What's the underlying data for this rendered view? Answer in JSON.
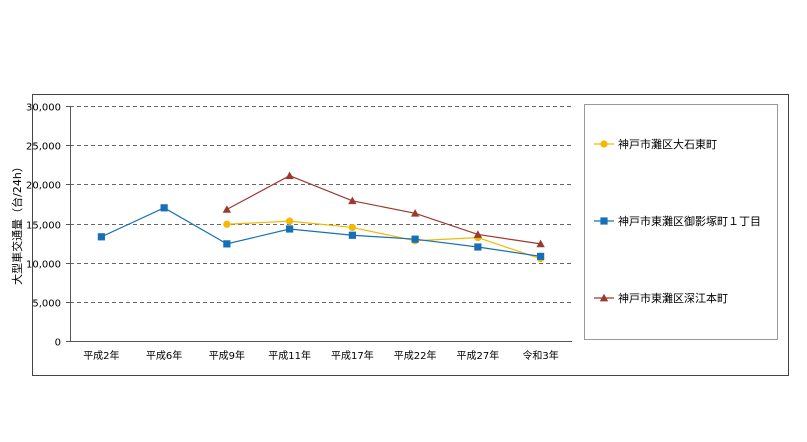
{
  "chart_data": {
    "type": "line",
    "title": "",
    "xlabel": "",
    "ylabel": "大型車交通量（台/24h）",
    "categories": [
      "平成2年",
      "平成6年",
      "平成9年",
      "平成11年",
      "平成17年",
      "平成22年",
      "平成27年",
      "令和3年"
    ],
    "ylim": [
      0,
      30000
    ],
    "yticks": [
      0,
      5000,
      10000,
      15000,
      20000,
      25000,
      30000
    ],
    "ytick_labels": [
      "0",
      "5,000",
      "10,000",
      "15,000",
      "20,000",
      "25,000",
      "30,000"
    ],
    "grid": "dashed horizontal",
    "legend_position": "right",
    "series": [
      {
        "name": "神戸市灘区大石東町",
        "color": "#f5b800",
        "marker": "circle",
        "values": [
          null,
          null,
          14900,
          15300,
          14500,
          12800,
          13200,
          10500
        ]
      },
      {
        "name": "神戸市東灘区御影塚町１丁目",
        "color": "#1670b7",
        "marker": "square",
        "values": [
          13300,
          17000,
          12400,
          14300,
          13500,
          13000,
          12000,
          10800
        ]
      },
      {
        "name": "神戸市東灘区深江本町",
        "color": "#9b3a31",
        "marker": "triangle",
        "values": [
          null,
          null,
          16800,
          21100,
          17900,
          16300,
          13600,
          12400
        ]
      }
    ]
  }
}
